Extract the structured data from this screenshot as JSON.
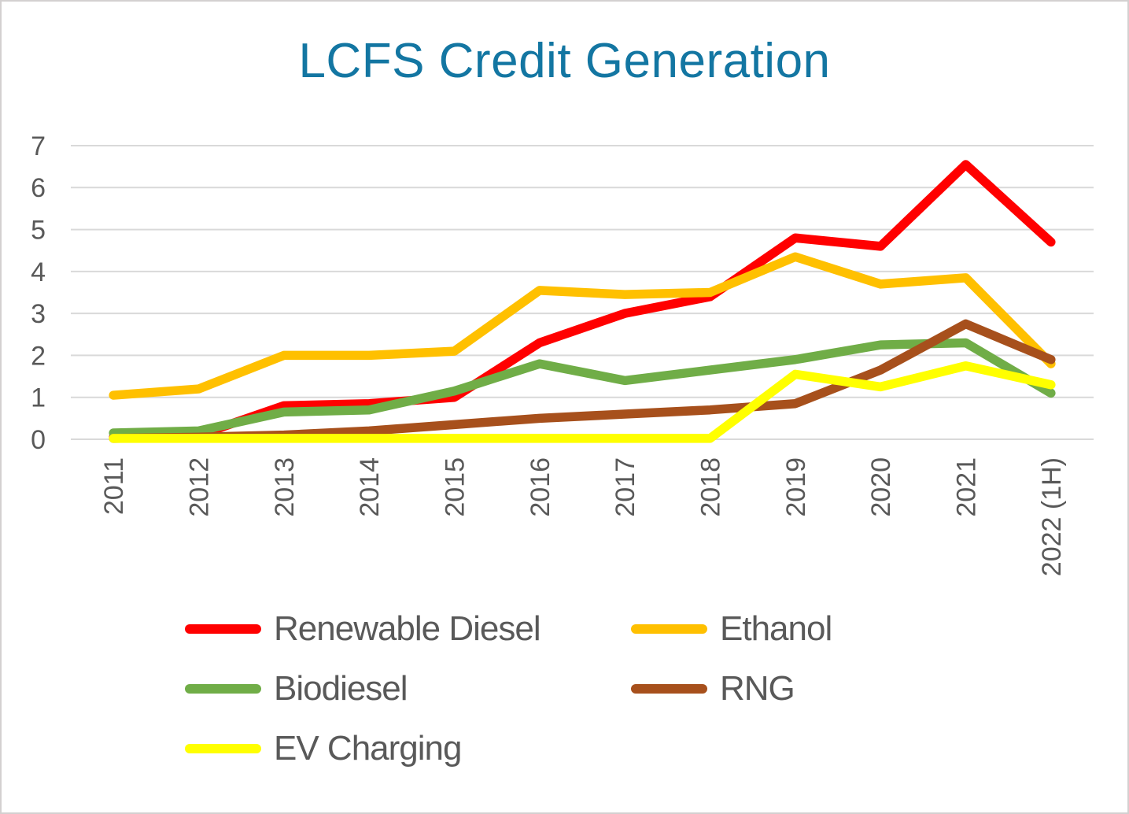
{
  "title": {
    "text": "LCFS Credit Generation",
    "color": "#1376A2"
  },
  "chart_data": {
    "type": "line",
    "categories": [
      "2011",
      "2012",
      "2013",
      "2014",
      "2015",
      "2016",
      "2017",
      "2018",
      "2019",
      "2020",
      "2021",
      "2022 (1H)"
    ],
    "series": [
      {
        "name": "Renewable Diesel",
        "color": "#FF0000",
        "values": [
          0.05,
          0.1,
          0.8,
          0.85,
          1.0,
          2.3,
          3.0,
          3.4,
          4.8,
          4.6,
          6.55,
          4.7
        ]
      },
      {
        "name": "Ethanol",
        "color": "#FFC000",
        "values": [
          1.05,
          1.2,
          2.0,
          2.0,
          2.1,
          3.55,
          3.45,
          3.5,
          4.35,
          3.7,
          3.85,
          1.8
        ]
      },
      {
        "name": "Biodiesel",
        "color": "#70AD47",
        "values": [
          0.15,
          0.2,
          0.65,
          0.7,
          1.15,
          1.8,
          1.4,
          1.65,
          1.9,
          2.25,
          2.3,
          1.1
        ]
      },
      {
        "name": "RNG",
        "color": "#A7501C",
        "values": [
          0.02,
          0.05,
          0.1,
          0.2,
          0.35,
          0.5,
          0.6,
          0.7,
          0.85,
          1.65,
          2.75,
          1.9
        ]
      },
      {
        "name": "EV Charging",
        "color": "#FFFF00",
        "values": [
          0.02,
          0.02,
          0.02,
          0.02,
          0.02,
          0.02,
          0.02,
          0.02,
          1.55,
          1.25,
          1.75,
          1.3
        ]
      }
    ],
    "ylim": [
      0,
      7
    ],
    "yticks": [
      0,
      1,
      2,
      3,
      4,
      5,
      6,
      7
    ],
    "grid": true,
    "legend_position": "bottom",
    "x_tick_rotation": -90
  },
  "colors": {
    "gridline": "#D9D9D9",
    "axis_text": "#595959",
    "frame_border": "#D3D0D0",
    "background": "#FFFFFF"
  }
}
